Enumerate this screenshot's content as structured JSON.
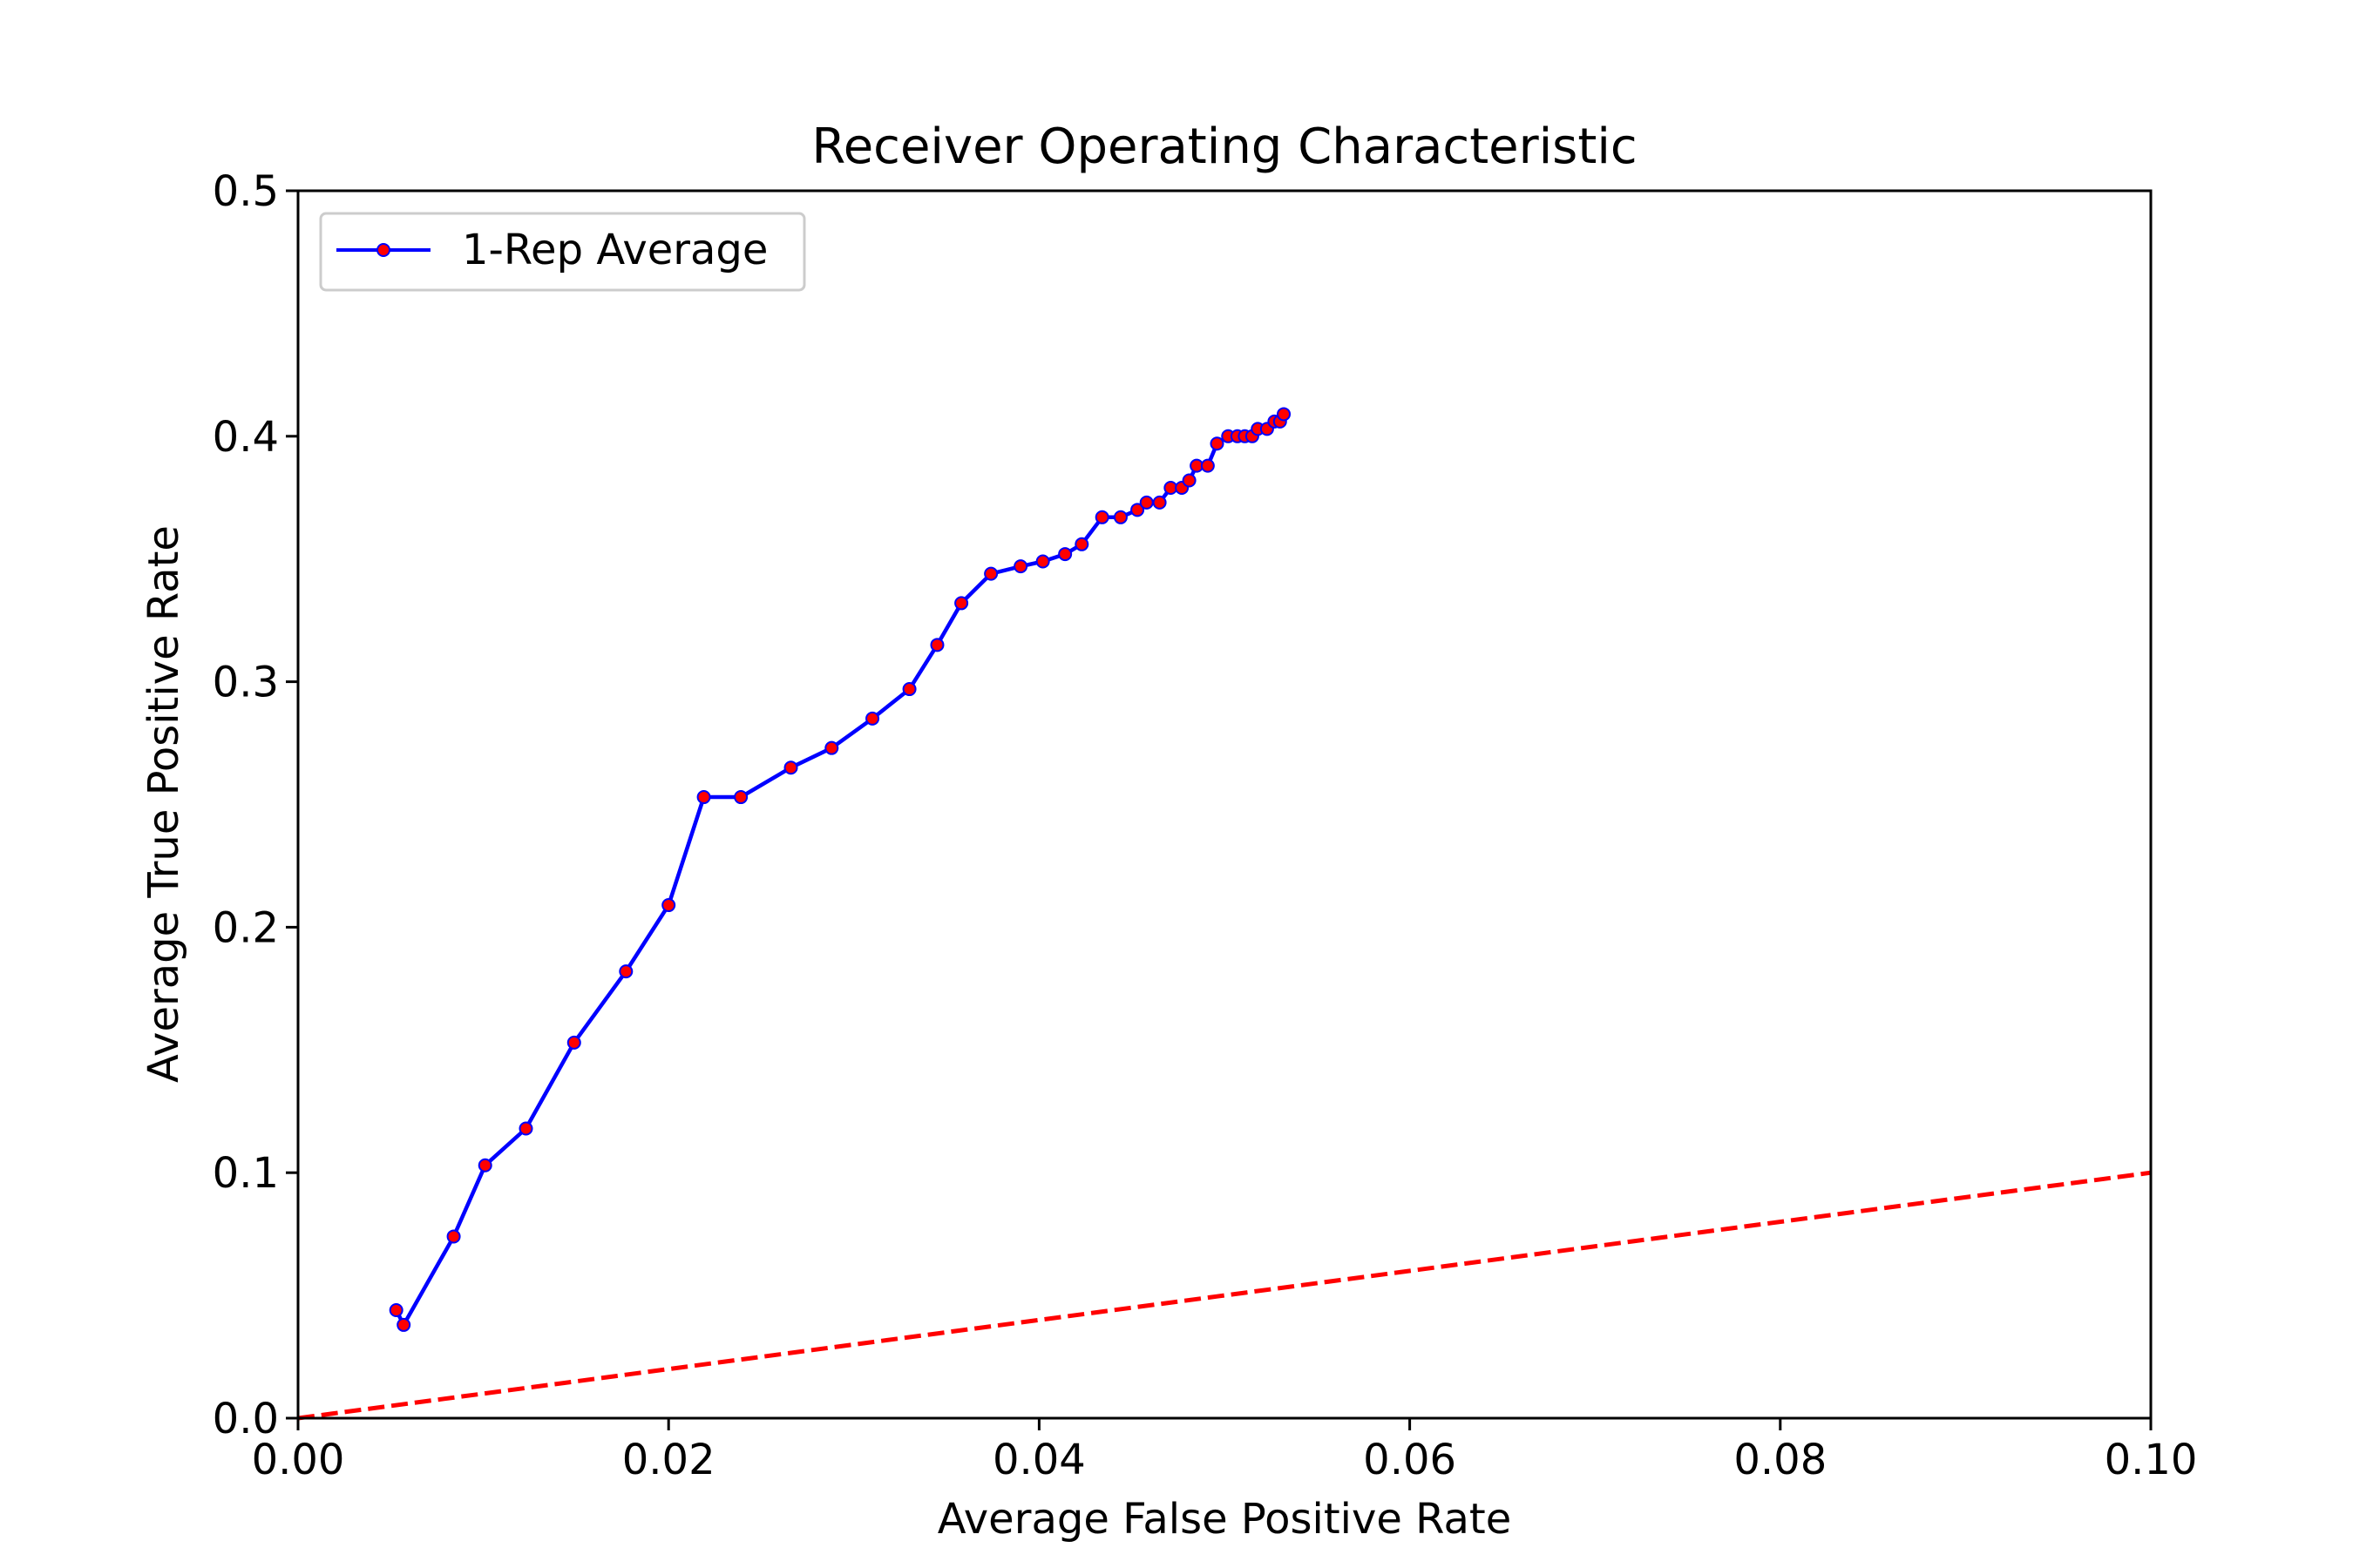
{
  "chart_data": {
    "type": "line",
    "title": "Receiver Operating Characteristic",
    "xlabel": "Average False Positive Rate",
    "ylabel": "Average True Positive Rate",
    "xlim": [
      0,
      0.1
    ],
    "ylim": [
      0,
      0.5
    ],
    "x_ticks": [
      "0.00",
      "0.02",
      "0.04",
      "0.06",
      "0.08",
      "0.10"
    ],
    "y_ticks": [
      "0.0",
      "0.1",
      "0.2",
      "0.3",
      "0.4",
      "0.5"
    ],
    "grid": false,
    "legend_position": "top-left",
    "series": [
      {
        "name": "1-Rep Average",
        "line_color": "#0000ff",
        "marker_color": "#ff0000",
        "x": [
          0.0053,
          0.0057,
          0.0084,
          0.0101,
          0.0123,
          0.0149,
          0.0177,
          0.02,
          0.0219,
          0.0239,
          0.0266,
          0.0288,
          0.031,
          0.033,
          0.0345,
          0.0358,
          0.0374,
          0.039,
          0.0402,
          0.0414,
          0.0423,
          0.0434,
          0.0444,
          0.0453,
          0.0458,
          0.0465,
          0.0471,
          0.0477,
          0.0481,
          0.0485,
          0.0491,
          0.0496,
          0.0502,
          0.0507,
          0.0511,
          0.0515,
          0.0518,
          0.0523,
          0.0527,
          0.053,
          0.0532
        ],
        "y": [
          0.044,
          0.038,
          0.074,
          0.103,
          0.118,
          0.153,
          0.182,
          0.209,
          0.253,
          0.253,
          0.265,
          0.273,
          0.285,
          0.297,
          0.315,
          0.332,
          0.344,
          0.347,
          0.349,
          0.352,
          0.356,
          0.367,
          0.367,
          0.37,
          0.373,
          0.373,
          0.379,
          0.379,
          0.382,
          0.388,
          0.388,
          0.397,
          0.4,
          0.4,
          0.4,
          0.4,
          0.403,
          0.403,
          0.406,
          0.406,
          0.409
        ]
      },
      {
        "type": "reference-line",
        "line_color": "#ff0000",
        "style": "dashed",
        "x": [
          0,
          0.1
        ],
        "y": [
          0,
          0.1
        ]
      }
    ]
  }
}
